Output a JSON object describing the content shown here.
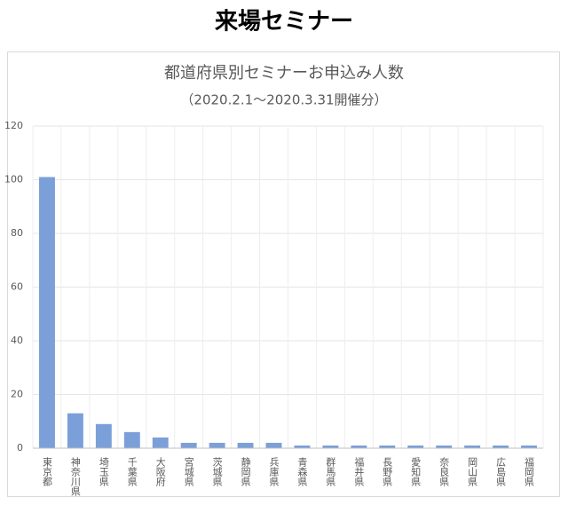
{
  "header": {
    "title": "来場セミナー"
  },
  "chart_data": {
    "type": "bar",
    "title": "都道府県別セミナーお申込み人数",
    "subtitle": "（2020.2.1〜2020.3.31開催分）",
    "categories": [
      "東京都",
      "神奈川県",
      "埼玉県",
      "千葉県",
      "大阪府",
      "宮城県",
      "茨城県",
      "静岡県",
      "兵庫県",
      "青森県",
      "群馬県",
      "福井県",
      "長野県",
      "愛知県",
      "奈良県",
      "岡山県",
      "広島県",
      "福岡県"
    ],
    "values": [
      101,
      13,
      9,
      6,
      4,
      2,
      2,
      2,
      2,
      1,
      1,
      1,
      1,
      1,
      1,
      1,
      1,
      1
    ],
    "color": "#7b9fd8",
    "ylim": [
      0,
      120
    ],
    "yticks": [
      0,
      20,
      40,
      60,
      80,
      100,
      120
    ],
    "grid": true
  }
}
